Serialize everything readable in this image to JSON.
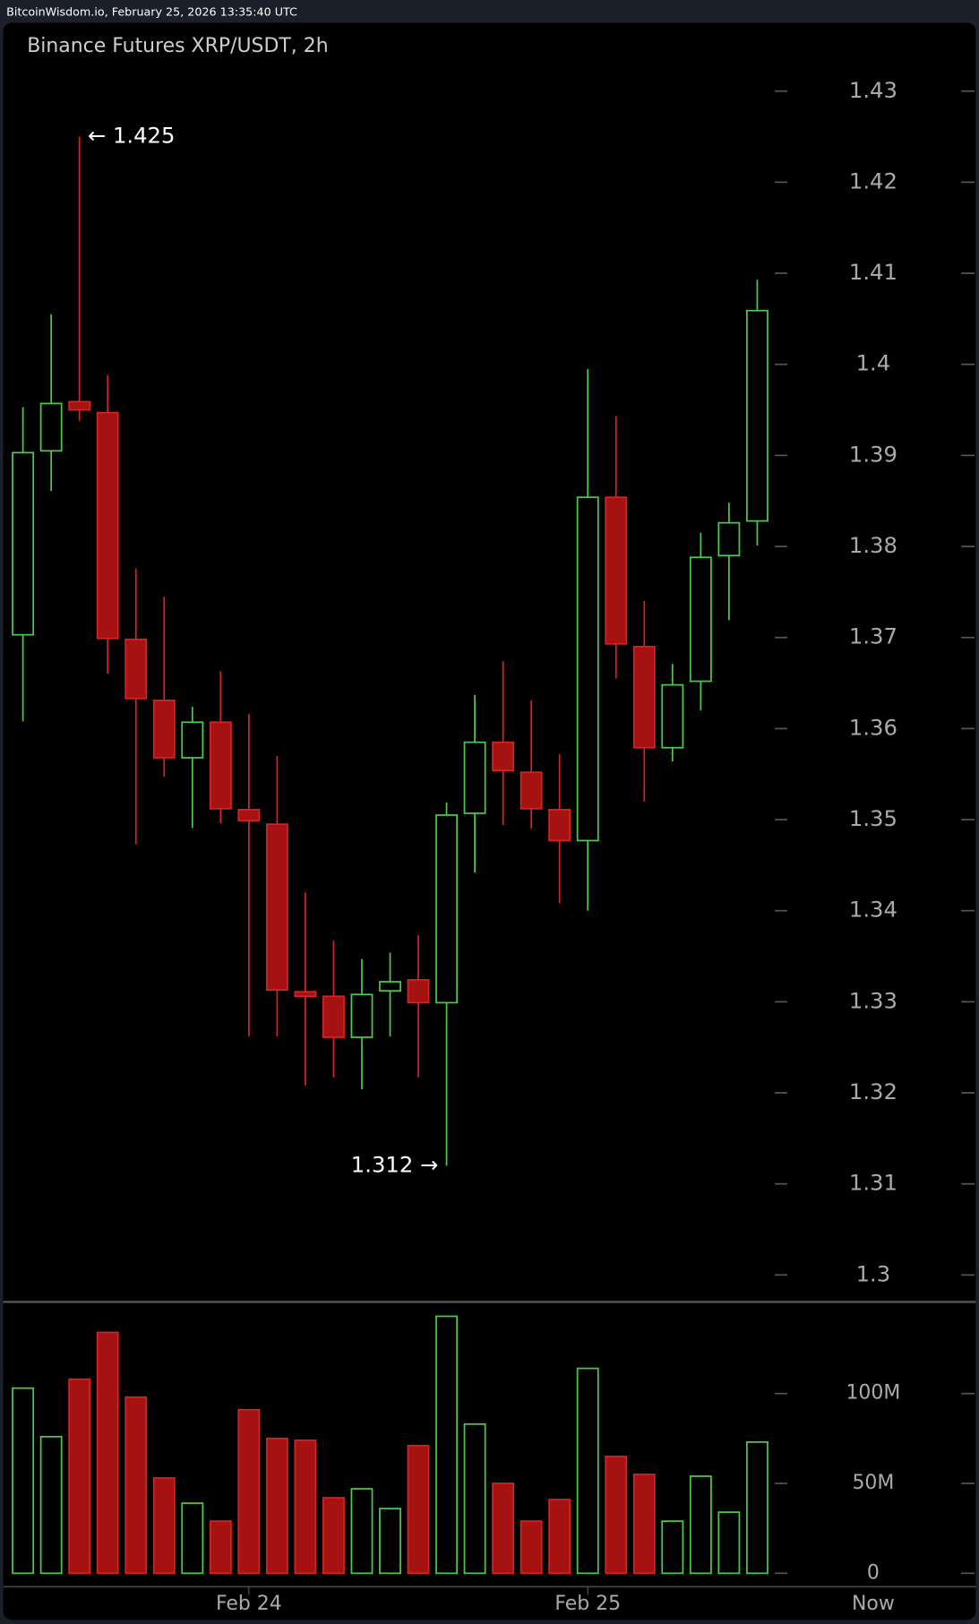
{
  "header": "BitcoinWisdom.io, February 25, 2026 13:35:40 UTC",
  "chart_data": {
    "type": "candlestick",
    "title": "Binance Futures XRP/USDT, 2h",
    "categories": [
      null,
      null,
      null,
      null,
      null,
      null,
      null,
      null,
      "Feb 24",
      null,
      null,
      null,
      null,
      null,
      null,
      null,
      null,
      null,
      null,
      null,
      "Feb 25",
      null,
      null,
      null,
      null,
      null,
      null
    ],
    "now_label": "Now",
    "open": [
      1.3703,
      1.3905,
      1.3959,
      1.3947,
      1.3698,
      1.3631,
      1.3568,
      1.3607,
      1.3511,
      1.3495,
      1.3311,
      1.3306,
      1.3261,
      1.3312,
      1.3324,
      1.3299,
      1.3507,
      1.3585,
      1.3552,
      1.3511,
      1.3477,
      1.3854,
      1.369,
      1.3579,
      1.3652,
      1.379,
      1.3828
    ],
    "high": [
      1.3953,
      1.4055,
      1.425,
      1.3988,
      1.3776,
      1.3745,
      1.3624,
      1.3663,
      1.3616,
      1.357,
      1.342,
      1.3367,
      1.3347,
      1.3354,
      1.3373,
      1.3519,
      1.3637,
      1.3674,
      1.3631,
      1.3572,
      1.3995,
      1.3943,
      1.374,
      1.3671,
      1.3815,
      1.3848,
      1.4093
    ],
    "low": [
      1.3608,
      1.3861,
      1.3938,
      1.366,
      1.3473,
      1.3547,
      1.3491,
      1.3496,
      1.3262,
      1.3262,
      1.3208,
      1.3217,
      1.3204,
      1.3262,
      1.3217,
      1.312,
      1.3442,
      1.3494,
      1.349,
      1.3408,
      1.34,
      1.3655,
      1.352,
      1.3564,
      1.362,
      1.3719,
      1.3801
    ],
    "close": [
      1.3903,
      1.3957,
      1.395,
      1.3699,
      1.3633,
      1.3568,
      1.3607,
      1.3512,
      1.3499,
      1.3313,
      1.3306,
      1.3261,
      1.3308,
      1.3322,
      1.3299,
      1.3505,
      1.3585,
      1.3554,
      1.3512,
      1.3477,
      1.3854,
      1.3693,
      1.3579,
      1.3648,
      1.3788,
      1.3826,
      1.4059
    ],
    "volume": [
      103000000,
      76000000,
      108000000,
      134000000,
      98000000,
      53000000,
      39000000,
      29000000,
      91000000,
      75000000,
      74000000,
      42000000,
      47000000,
      36000000,
      71000000,
      143000000,
      83000000,
      50000000,
      29000000,
      41000000,
      114000000,
      65000000,
      55000000,
      29000000,
      54000000,
      34000000,
      73000000
    ],
    "up_color": "#4cc94c",
    "down_color": "#a51212",
    "down_edge_color": "#d42323",
    "ylim": [
      1.3,
      1.43
    ],
    "yticks": [
      1.3,
      1.31,
      1.32,
      1.33,
      1.34,
      1.35,
      1.36,
      1.37,
      1.38,
      1.39,
      1.4,
      1.41,
      1.42,
      1.43
    ],
    "volume_ylim": [
      0,
      151000000
    ],
    "volume_yticks": [
      0,
      {
        "value": 50000000,
        "label": "50M"
      },
      {
        "value": 100000000,
        "label": "100M"
      }
    ],
    "annotations": [
      {
        "text": "← 1.425"
      },
      {
        "text": "1.312 →"
      }
    ]
  }
}
